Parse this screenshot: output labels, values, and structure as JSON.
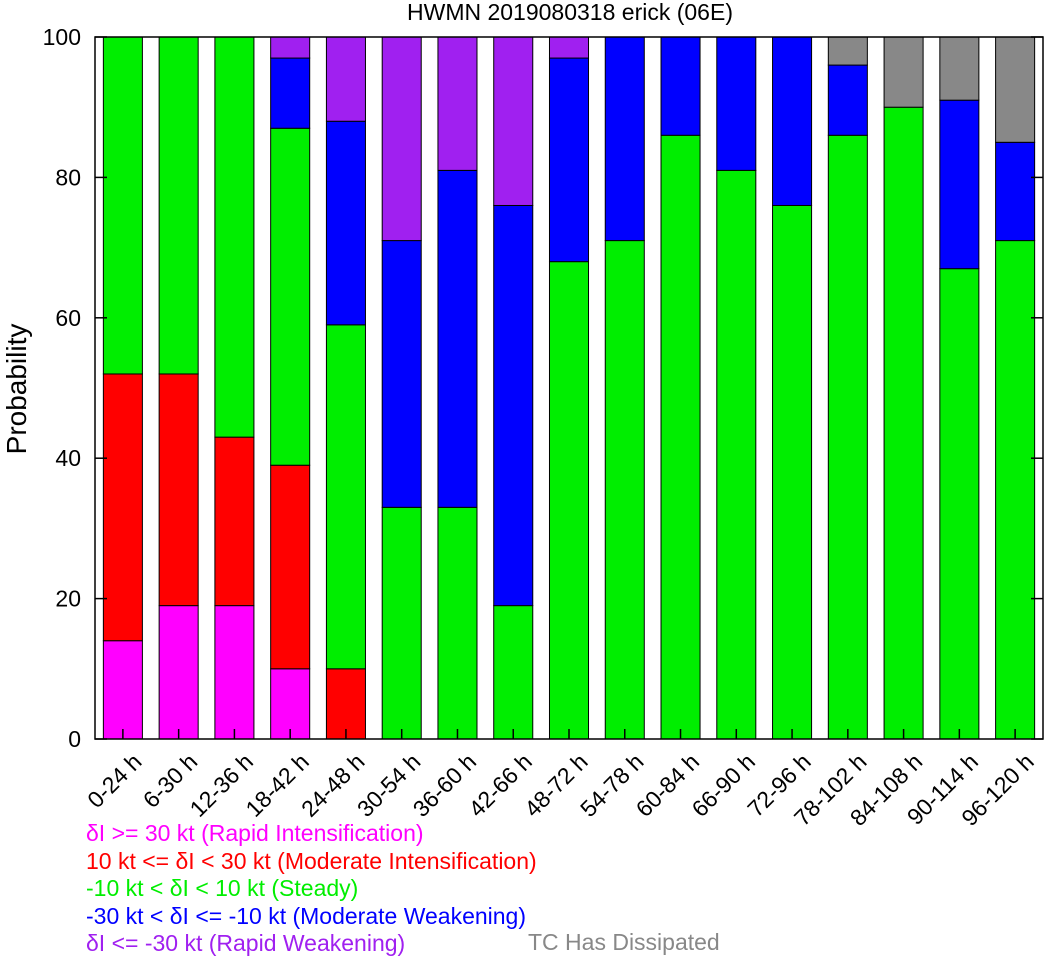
{
  "chart_data": {
    "type": "bar",
    "stacked": true,
    "title": "HWMN 2019080318 erick (06E)",
    "xlabel": "",
    "ylabel": "Probability",
    "ylim": [
      0,
      100
    ],
    "yticks": [
      "0",
      "20",
      "40",
      "60",
      "80",
      "100"
    ],
    "grid": false,
    "categories": [
      "0-24 h",
      "6-30 h",
      "12-36 h",
      "18-42 h",
      "24-48 h",
      "30-54 h",
      "36-60 h",
      "42-66 h",
      "48-72 h",
      "54-78 h",
      "60-84 h",
      "66-90 h",
      "72-96 h",
      "78-102 h",
      "84-108 h",
      "90-114 h",
      "96-120 h"
    ],
    "series": [
      {
        "key": "ri",
        "color": "#ff00ff",
        "values": [
          14,
          19,
          19,
          10,
          0,
          0,
          0,
          0,
          0,
          0,
          0,
          0,
          0,
          0,
          0,
          0,
          0
        ]
      },
      {
        "key": "mi",
        "color": "#ff0000",
        "values": [
          38,
          33,
          24,
          29,
          10,
          0,
          0,
          0,
          0,
          0,
          0,
          0,
          0,
          0,
          0,
          0,
          0
        ]
      },
      {
        "key": "steady",
        "color": "#00ee00",
        "values": [
          48,
          48,
          57,
          48,
          49,
          33,
          33,
          19,
          68,
          71,
          86,
          81,
          76,
          86,
          90,
          67,
          71
        ]
      },
      {
        "key": "mw",
        "color": "#0000ff",
        "values": [
          0,
          0,
          0,
          10,
          29,
          38,
          48,
          57,
          29,
          29,
          14,
          19,
          24,
          10,
          0,
          24,
          14
        ]
      },
      {
        "key": "rw",
        "color": "#a020f0",
        "values": [
          0,
          0,
          0,
          3,
          12,
          29,
          19,
          24,
          3,
          0,
          0,
          0,
          0,
          0,
          0,
          0,
          0
        ]
      },
      {
        "key": "dissipated",
        "color": "#888888",
        "values": [
          0,
          0,
          0,
          0,
          0,
          0,
          0,
          0,
          0,
          0,
          0,
          0,
          0,
          4,
          10,
          9,
          15
        ]
      }
    ],
    "legend": [
      {
        "label": "δI >= 30 kt (Rapid Intensification)",
        "color": "#ff00ff"
      },
      {
        "label": "10 kt <= δI < 30 kt (Moderate Intensification)",
        "color": "#ff0000"
      },
      {
        "label": "-10 kt < δI < 10 kt (Steady)",
        "color": "#00ee00"
      },
      {
        "label": "-30 kt < δI <= -10 kt (Moderate Weakening)",
        "color": "#0000ff"
      },
      {
        "label": "δI <= -30 kt (Rapid Weakening)",
        "color": "#a020f0"
      }
    ],
    "legend_extra": {
      "label": "TC Has Dissipated",
      "color": "#888888"
    }
  }
}
